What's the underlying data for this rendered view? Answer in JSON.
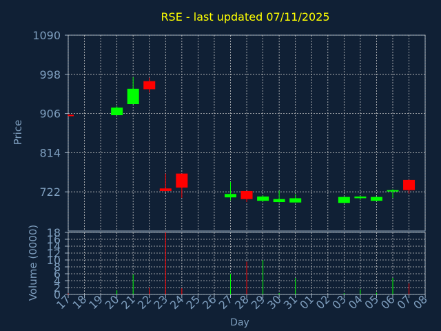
{
  "title": "RSE - last updated 07/11/2025",
  "colors": {
    "background": "#102035",
    "axis_text": "#7f9fbf",
    "title": "#ffff00",
    "grid": "#c8c8c8",
    "up": "#00ff00",
    "down": "#ff0000"
  },
  "chart_data": [
    {
      "type": "candlestick",
      "ylabel": "Price",
      "yticks": [
        "1090",
        "998",
        "906",
        "814",
        "722"
      ],
      "ylim": [
        630,
        1090
      ],
      "candles": [
        {
          "day": "17",
          "open": 903,
          "high": 905,
          "low": 901,
          "close": 901
        },
        {
          "day": "20",
          "open": 902,
          "high": 923,
          "low": 902,
          "close": 920
        },
        {
          "day": "21",
          "open": 928,
          "high": 991,
          "low": 928,
          "close": 964
        },
        {
          "day": "22",
          "open": 982,
          "high": 990,
          "low": 955,
          "close": 963
        },
        {
          "day": "23",
          "open": 730,
          "high": 765,
          "low": 723,
          "close": 724
        },
        {
          "day": "24",
          "open": 765,
          "high": 765,
          "low": 708,
          "close": 732
        },
        {
          "day": "27",
          "open": 709,
          "high": 745,
          "low": 702,
          "close": 717
        },
        {
          "day": "28",
          "open": 724,
          "high": 724,
          "low": 698,
          "close": 705
        },
        {
          "day": "29",
          "open": 701,
          "high": 714,
          "low": 699,
          "close": 711
        },
        {
          "day": "30",
          "open": 698,
          "high": 725,
          "low": 697,
          "close": 705
        },
        {
          "day": "31",
          "open": 697,
          "high": 716,
          "low": 697,
          "close": 707
        },
        {
          "day": "03",
          "open": 696,
          "high": 711,
          "low": 696,
          "close": 710
        },
        {
          "day": "04",
          "open": 707,
          "high": 713,
          "low": 703,
          "close": 711
        },
        {
          "day": "05",
          "open": 701,
          "high": 711,
          "low": 700,
          "close": 710
        },
        {
          "day": "06",
          "open": 726,
          "high": 728,
          "low": 708,
          "close": 726
        },
        {
          "day": "07",
          "open": 750,
          "high": 751,
          "low": 718,
          "close": 726
        }
      ]
    },
    {
      "type": "bar",
      "ylabel": "Volume (0000)",
      "xlabel": "Day",
      "yticks": [
        "18",
        "16",
        "14",
        "12",
        "10",
        "8",
        "6",
        "4",
        "2",
        "0"
      ],
      "ylim": [
        0,
        18
      ],
      "x_tick_labels": [
        "17",
        "18",
        "19",
        "20",
        "21",
        "22",
        "23",
        "24",
        "25",
        "26",
        "27",
        "28",
        "29",
        "30",
        "31",
        "01",
        "02",
        "03",
        "04",
        "05",
        "06",
        "07",
        "08"
      ],
      "bars": [
        {
          "day": "17",
          "value": 0.3,
          "dir": "down"
        },
        {
          "day": "20",
          "value": 1.2,
          "dir": "up"
        },
        {
          "day": "21",
          "value": 5.8,
          "dir": "up"
        },
        {
          "day": "22",
          "value": 2.0,
          "dir": "down"
        },
        {
          "day": "23",
          "value": 18.0,
          "dir": "down"
        },
        {
          "day": "24",
          "value": 1.8,
          "dir": "down"
        },
        {
          "day": "27",
          "value": 6.0,
          "dir": "up"
        },
        {
          "day": "28",
          "value": 9.5,
          "dir": "down"
        },
        {
          "day": "29",
          "value": 10.0,
          "dir": "up"
        },
        {
          "day": "30",
          "value": 0.4,
          "dir": "up"
        },
        {
          "day": "31",
          "value": 4.8,
          "dir": "up"
        },
        {
          "day": "03",
          "value": 0.4,
          "dir": "up"
        },
        {
          "day": "04",
          "value": 1.5,
          "dir": "up"
        },
        {
          "day": "05",
          "value": 0.5,
          "dir": "up"
        },
        {
          "day": "06",
          "value": 4.8,
          "dir": "up"
        },
        {
          "day": "07",
          "value": 3.2,
          "dir": "down"
        }
      ]
    }
  ]
}
